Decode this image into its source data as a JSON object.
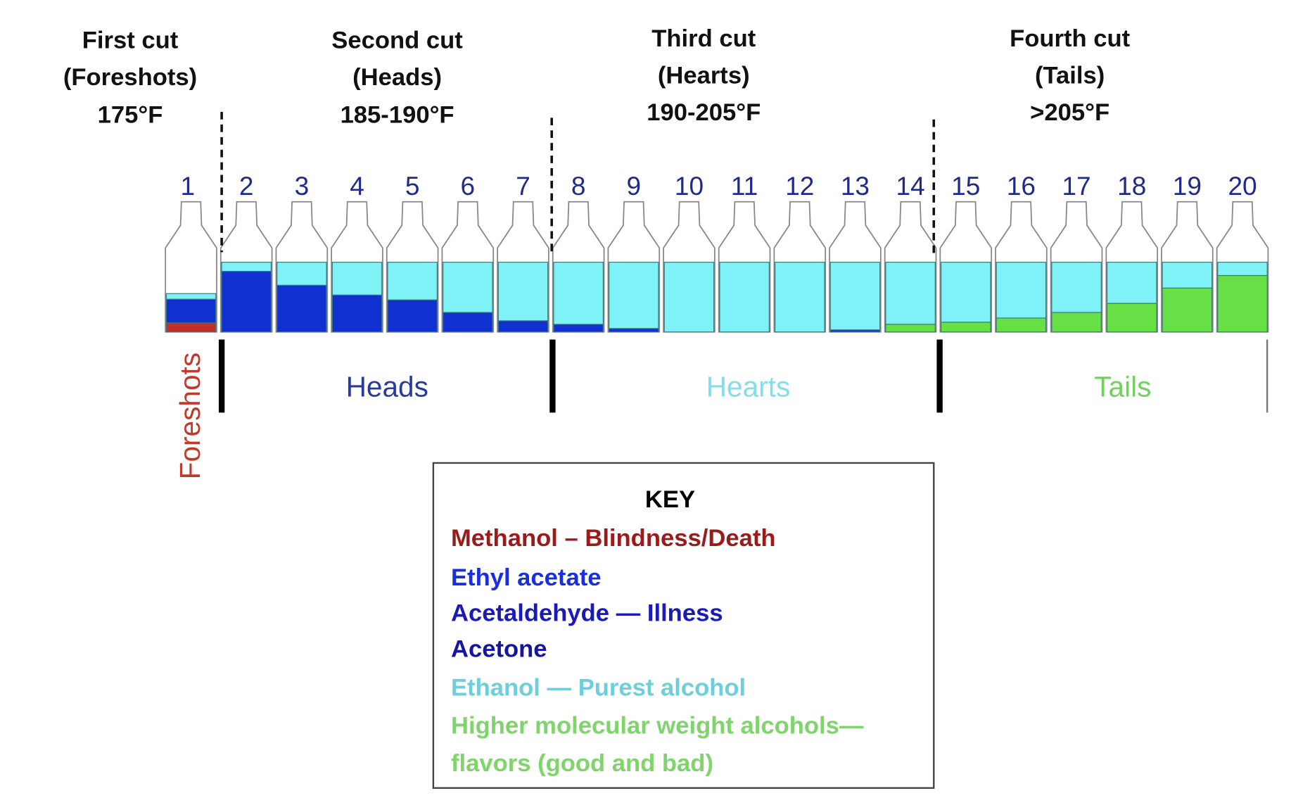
{
  "cuts": [
    {
      "title": "First cut",
      "sub": "(Foreshots)",
      "temp": "175°F"
    },
    {
      "title": "Second cut",
      "sub": "(Heads)",
      "temp": "185-190°F"
    },
    {
      "title": "Third cut",
      "sub": "(Hearts)",
      "temp": "190-205°F"
    },
    {
      "title": "Fourth cut",
      "sub": "(Tails)",
      "temp": ">205°F"
    }
  ],
  "sections": {
    "foreshots": "Foreshots",
    "heads": "Heads",
    "hearts": "Hearts",
    "tails": "Tails"
  },
  "colors": {
    "methanol": "#c0302a",
    "heads_compounds": "#1030d0",
    "ethanol": "#7ef2f6",
    "higher_alcohols": "#66e044",
    "heads_label": "#2a3a9a",
    "hearts_label": "#86dde8",
    "tails_label": "#72d05c",
    "foreshots_label": "#c0392b"
  },
  "bottles": [
    {
      "label": "1",
      "methanol": 0.13,
      "heads": 0.34,
      "ethanol": 0.08,
      "higher": 0
    },
    {
      "label": "2",
      "methanol": 0,
      "heads": 0.87,
      "ethanol": 0.13,
      "higher": 0
    },
    {
      "label": "3",
      "methanol": 0,
      "heads": 0.67,
      "ethanol": 0.33,
      "higher": 0
    },
    {
      "label": "4",
      "methanol": 0,
      "heads": 0.53,
      "ethanol": 0.47,
      "higher": 0
    },
    {
      "label": "5",
      "methanol": 0,
      "heads": 0.46,
      "ethanol": 0.54,
      "higher": 0
    },
    {
      "label": "6",
      "methanol": 0,
      "heads": 0.28,
      "ethanol": 0.72,
      "higher": 0
    },
    {
      "label": "7",
      "methanol": 0,
      "heads": 0.16,
      "ethanol": 0.84,
      "higher": 0
    },
    {
      "label": "8",
      "methanol": 0,
      "heads": 0.11,
      "ethanol": 0.89,
      "higher": 0
    },
    {
      "label": "9",
      "methanol": 0,
      "heads": 0.05,
      "ethanol": 0.95,
      "higher": 0
    },
    {
      "label": "10",
      "methanol": 0,
      "heads": 0,
      "ethanol": 1,
      "higher": 0
    },
    {
      "label": "11",
      "methanol": 0,
      "heads": 0,
      "ethanol": 1,
      "higher": 0
    },
    {
      "label": "12",
      "methanol": 0,
      "heads": 0,
      "ethanol": 1,
      "higher": 0
    },
    {
      "label": "13",
      "methanol": 0,
      "heads": 0.03,
      "ethanol": 0.97,
      "higher": 0
    },
    {
      "label": "14",
      "methanol": 0,
      "heads": 0,
      "ethanol": 0.89,
      "higher": 0.11
    },
    {
      "label": "15",
      "methanol": 0,
      "heads": 0,
      "ethanol": 0.86,
      "higher": 0.14
    },
    {
      "label": "16",
      "methanol": 0,
      "heads": 0,
      "ethanol": 0.8,
      "higher": 0.2
    },
    {
      "label": "17",
      "methanol": 0,
      "heads": 0,
      "ethanol": 0.72,
      "higher": 0.28
    },
    {
      "label": "18",
      "methanol": 0,
      "heads": 0,
      "ethanol": 0.59,
      "higher": 0.41
    },
    {
      "label": "19",
      "methanol": 0,
      "heads": 0,
      "ethanol": 0.37,
      "higher": 0.63
    },
    {
      "label": "20",
      "methanol": 0,
      "heads": 0,
      "ethanol": 0.19,
      "higher": 0.81
    }
  ],
  "key": {
    "title": "KEY",
    "items": [
      {
        "text": "Methanol – Blindness/Death",
        "color": "#9b1b1b"
      },
      {
        "text": "Ethyl acetate",
        "color": "#1a2ee0"
      },
      {
        "text": "Acetaldehyde — Illness",
        "color": "#1a1ab8"
      },
      {
        "text": "Acetone",
        "color": "#1515a0"
      },
      {
        "text": "Ethanol — Purest alcohol",
        "color": "#6ccfdc"
      },
      {
        "text": "Higher molecular weight alcohols—",
        "color": "#80d46c"
      },
      {
        "text": "flavors (good and bad)",
        "color": "#80d46c"
      }
    ]
  }
}
